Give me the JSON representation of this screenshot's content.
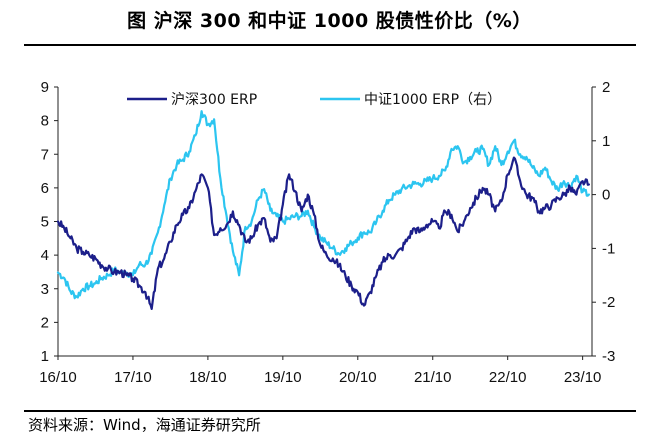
{
  "header": {
    "title": "图    沪深 300 和中证 1000 股债性价比（%）"
  },
  "footer": {
    "source": "资料来源：Wind，海通证券研究所"
  },
  "chart_data": {
    "type": "line",
    "title": "沪深 300 和中证 1000 股债性价比（%）",
    "x_ticks": [
      "16/10",
      "17/10",
      "18/10",
      "19/10",
      "20/10",
      "21/10",
      "22/10",
      "23/10"
    ],
    "x_range": [
      0,
      85.5
    ],
    "y_left": {
      "range": [
        1,
        9
      ],
      "ticks": [
        1,
        2,
        3,
        4,
        5,
        6,
        7,
        8,
        9
      ]
    },
    "y_right": {
      "range": [
        -3,
        2
      ],
      "ticks": [
        -3,
        -2,
        -1,
        0,
        1,
        2
      ]
    },
    "series": [
      {
        "name": "沪深300 ERP",
        "axis": "left",
        "color": "#1c1f8a",
        "x": [
          0,
          1,
          2,
          3,
          4,
          5,
          6,
          7,
          8,
          9,
          10,
          11,
          12,
          13,
          14,
          15,
          16,
          17,
          18,
          19,
          20,
          21,
          22,
          23,
          24,
          25,
          26,
          27,
          28,
          29,
          30,
          31,
          32,
          33,
          34,
          35,
          36,
          37,
          38,
          39,
          40,
          41,
          42,
          43,
          44,
          45,
          46,
          47,
          48,
          49,
          50,
          51,
          52,
          53,
          54,
          55,
          56,
          57,
          58,
          59,
          60,
          61,
          62,
          63,
          64,
          65,
          66,
          67,
          68,
          69,
          70,
          71,
          72,
          73,
          74,
          75,
          76,
          77,
          78,
          79,
          80,
          81,
          82,
          83,
          84,
          85
        ],
        "y": [
          5.0,
          4.8,
          4.5,
          4.2,
          4.1,
          4.0,
          3.9,
          3.7,
          3.6,
          3.5,
          3.5,
          3.4,
          3.3,
          3.1,
          2.9,
          2.4,
          3.6,
          3.9,
          4.4,
          4.9,
          5.2,
          5.4,
          5.9,
          6.4,
          6.0,
          4.6,
          4.8,
          4.9,
          5.3,
          4.9,
          4.4,
          4.5,
          4.9,
          5.1,
          4.4,
          4.5,
          5.5,
          6.4,
          5.9,
          5.3,
          5.8,
          5.2,
          4.3,
          4.0,
          3.9,
          3.7,
          3.4,
          3.1,
          2.9,
          2.5,
          2.9,
          3.4,
          3.8,
          4.0,
          4.0,
          4.2,
          4.5,
          4.8,
          4.7,
          4.9,
          5.0,
          4.8,
          5.3,
          5.2,
          4.7,
          5.0,
          5.4,
          5.7,
          6.0,
          5.8,
          5.3,
          5.6,
          6.4,
          6.9,
          6.2,
          5.8,
          5.7,
          5.3,
          5.4,
          5.5,
          5.7,
          5.8,
          6.0,
          5.8,
          6.2,
          6.1
        ]
      },
      {
        "name": "中证1000 ERP（右）",
        "axis": "right",
        "color": "#2cc5f0",
        "x": [
          0,
          1,
          2,
          3,
          4,
          5,
          6,
          7,
          8,
          9,
          10,
          11,
          12,
          13,
          14,
          15,
          16,
          17,
          18,
          19,
          20,
          21,
          22,
          23,
          24,
          25,
          26,
          27,
          28,
          29,
          30,
          31,
          32,
          33,
          34,
          35,
          36,
          37,
          38,
          39,
          40,
          41,
          42,
          43,
          44,
          45,
          46,
          47,
          48,
          49,
          50,
          51,
          52,
          53,
          54,
          55,
          56,
          57,
          58,
          59,
          60,
          61,
          62,
          63,
          64,
          65,
          66,
          67,
          68,
          69,
          70,
          71,
          72,
          73,
          74,
          75,
          76,
          77,
          78,
          79,
          80,
          81,
          82,
          83,
          84,
          85
        ],
        "y": [
          -1.45,
          -1.55,
          -1.8,
          -1.9,
          -1.75,
          -1.7,
          -1.65,
          -1.55,
          -1.5,
          -1.4,
          -1.45,
          -1.45,
          -1.5,
          -1.3,
          -1.3,
          -1.1,
          -0.7,
          -0.2,
          0.3,
          0.55,
          0.65,
          0.8,
          1.1,
          1.55,
          1.3,
          1.4,
          0.3,
          -0.4,
          -1.05,
          -1.5,
          -0.6,
          -0.5,
          -0.1,
          0.1,
          -0.3,
          -0.4,
          -0.5,
          -0.45,
          -0.4,
          -0.4,
          -0.3,
          -0.6,
          -0.8,
          -0.9,
          -1.0,
          -1.1,
          -1.0,
          -0.9,
          -0.8,
          -0.7,
          -0.7,
          -0.5,
          -0.3,
          -0.1,
          0.0,
          0.1,
          0.15,
          0.2,
          0.2,
          0.25,
          0.3,
          0.35,
          0.45,
          0.85,
          0.9,
          0.6,
          0.7,
          0.8,
          0.85,
          0.55,
          0.9,
          0.55,
          0.8,
          1.0,
          0.75,
          0.7,
          0.5,
          0.35,
          0.5,
          0.25,
          0.1,
          0.25,
          0.15,
          0.35,
          0.05,
          0.0
        ]
      }
    ],
    "legend_position": "top"
  }
}
